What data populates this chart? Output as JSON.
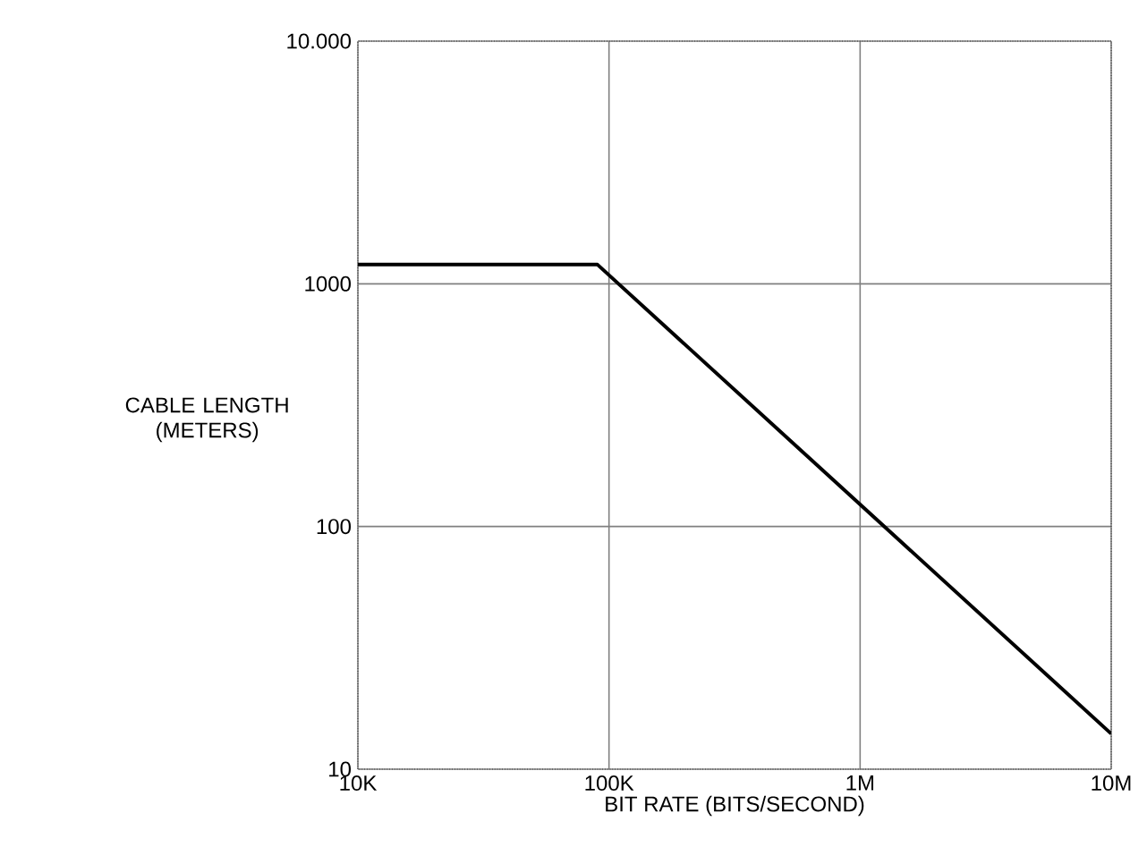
{
  "chart_data": {
    "type": "line",
    "xlabel": "BIT RATE (BITS/SECOND)",
    "ylabel": "CABLE LENGTH (METERS)",
    "x": [
      10000,
      90000,
      10000000
    ],
    "values": [
      1200,
      1200,
      14
    ],
    "color": "#000000",
    "xlim": [
      10000,
      10000000
    ],
    "ylim": [
      10,
      10000
    ],
    "xticks": [
      {
        "value": 10000,
        "label": "10K"
      },
      {
        "value": 100000,
        "label": "100K"
      },
      {
        "value": 1000000,
        "label": "1M"
      },
      {
        "value": 10000000,
        "label": "10M"
      }
    ],
    "yticks": [
      10,
      100,
      1000,
      {
        "value": 10000,
        "label": "10.000"
      }
    ],
    "log": "xy",
    "grid": true,
    "marker": "none",
    "line_style": "solid"
  }
}
